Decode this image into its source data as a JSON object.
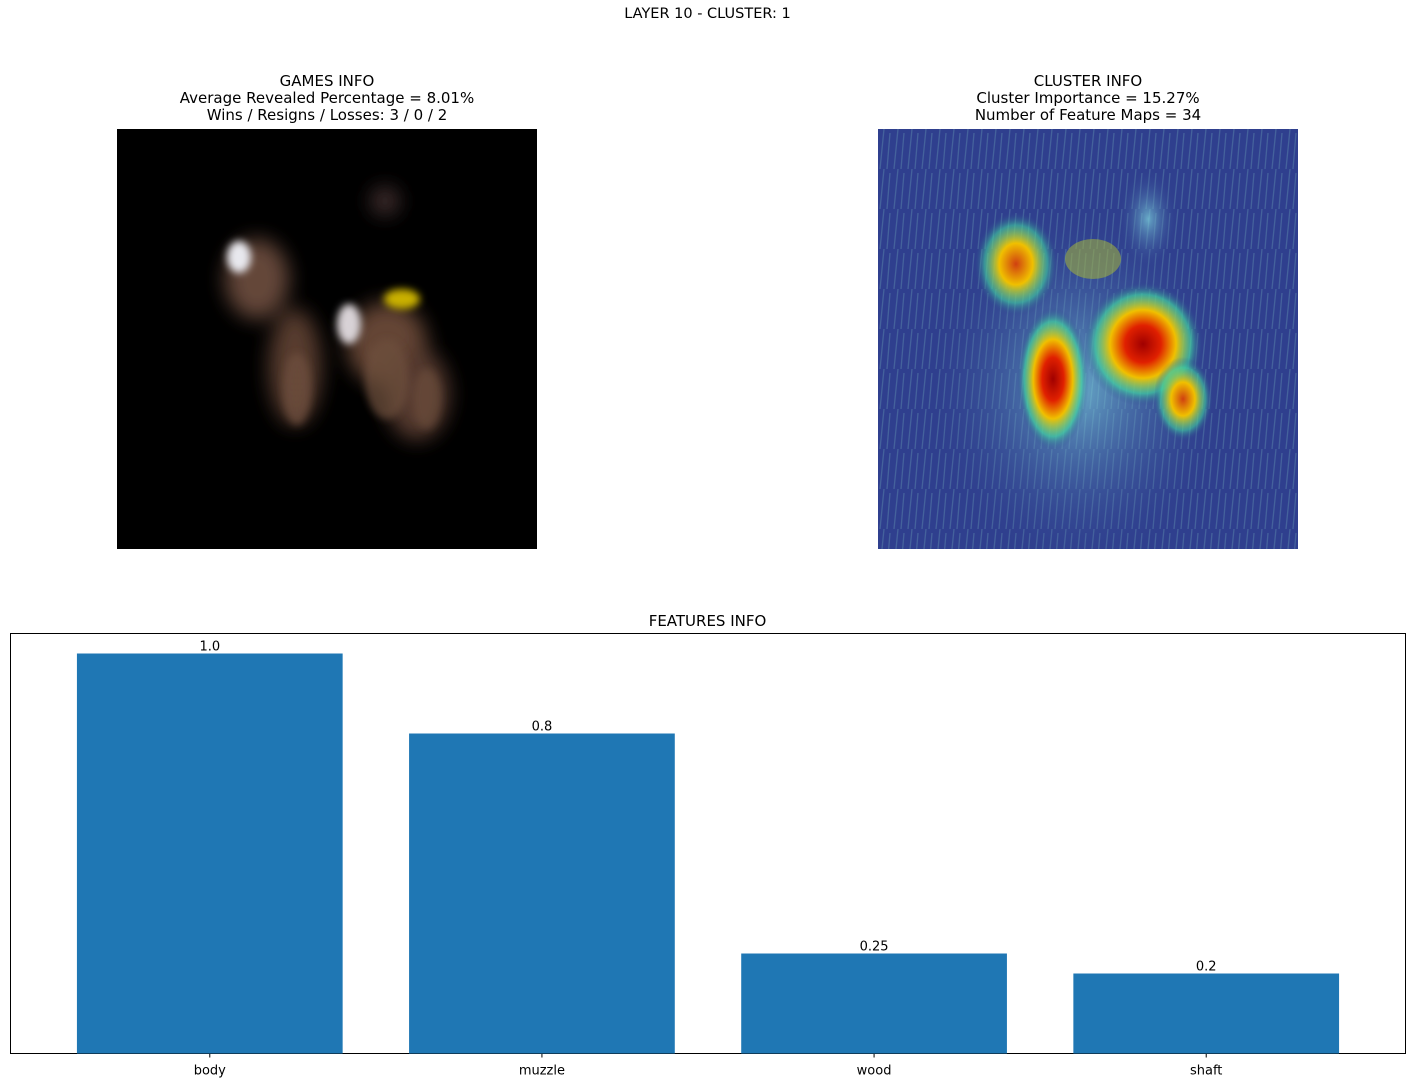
{
  "suptitle": "LAYER 10 - CLUSTER: 1",
  "games_info": {
    "title": "GAMES INFO",
    "line1": "Average Revealed Percentage = 8.01%",
    "line2": "Wins / Resigns / Losses: 3 / 0 / 2"
  },
  "cluster_info": {
    "title": "CLUSTER INFO",
    "line1": "Cluster Importance = 15.27%",
    "line2": "Number of Feature Maps = 34"
  },
  "chart_data": {
    "type": "bar",
    "title": "FEATURES INFO",
    "categories": [
      "body",
      "muzzle",
      "wood",
      "shaft"
    ],
    "values": [
      1.0,
      0.8,
      0.25,
      0.2
    ],
    "value_labels": [
      "1.0",
      "0.8",
      "0.25",
      "0.2"
    ],
    "ylim": [
      0,
      1.05
    ],
    "bar_color": "#1f77b4",
    "grid": false,
    "y_ticks_visible": false
  }
}
